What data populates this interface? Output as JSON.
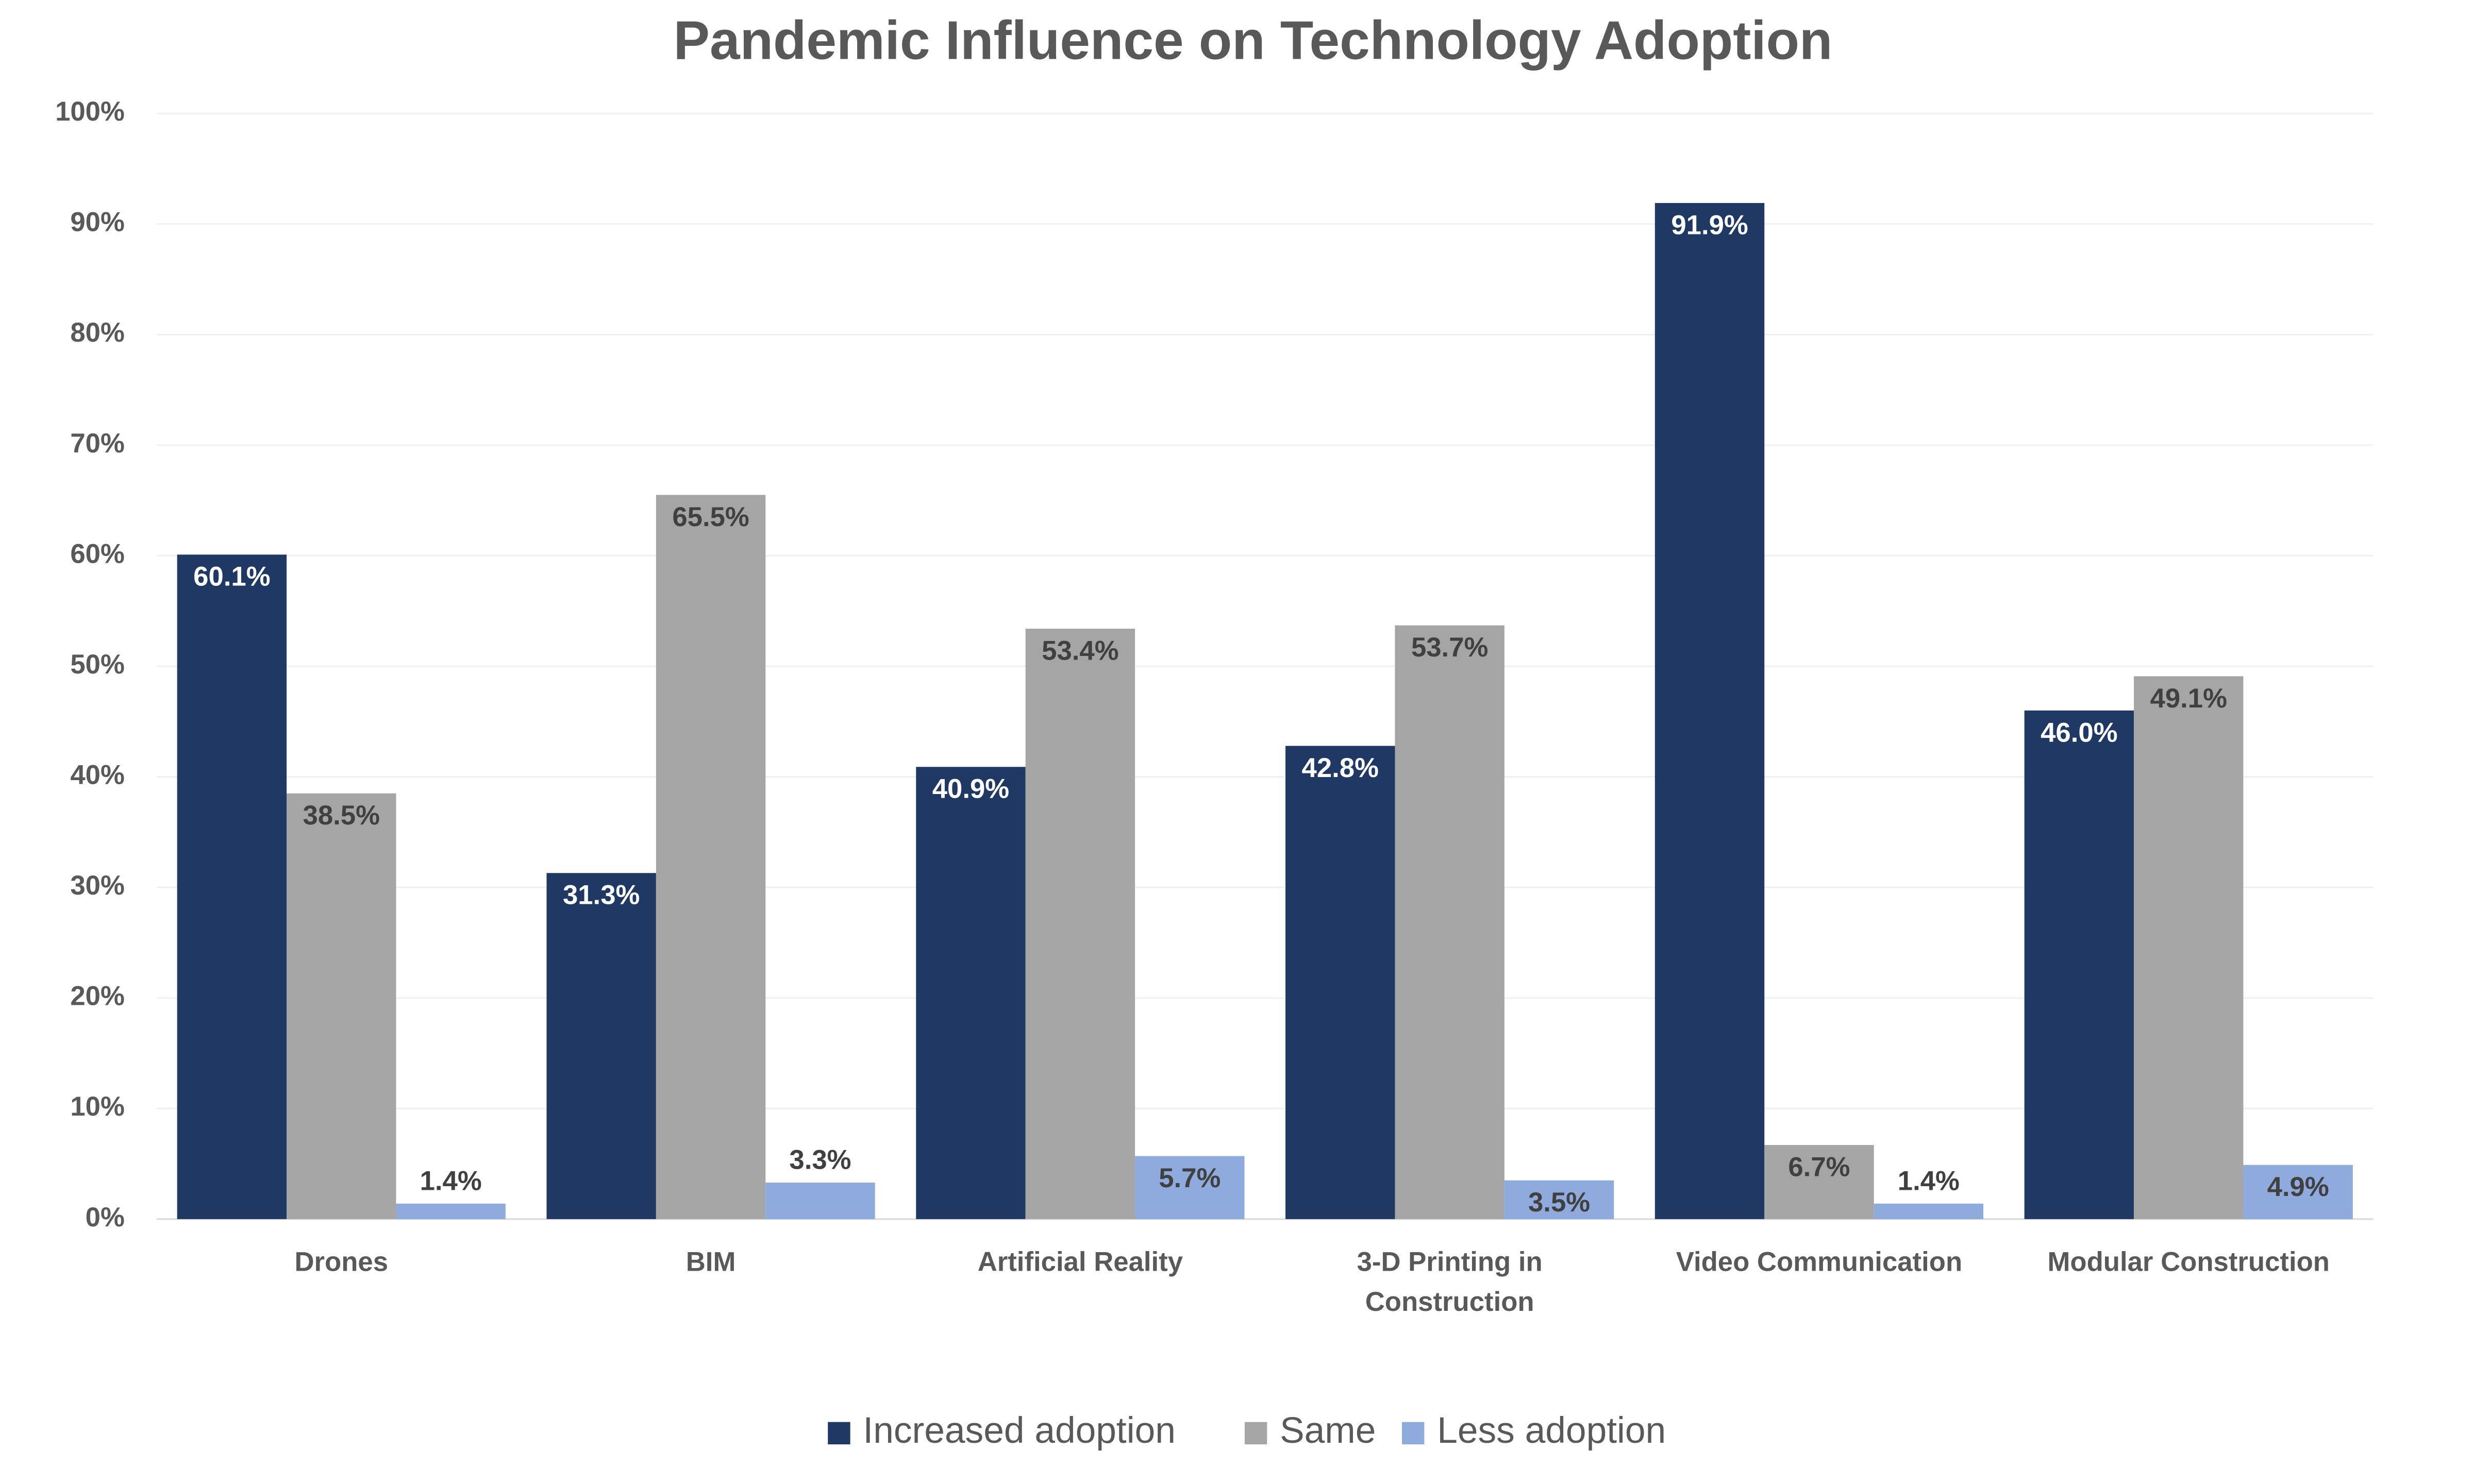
{
  "chart_data": {
    "type": "bar",
    "title": "Pandemic Influence on Technology Adoption",
    "categories": [
      "Drones",
      "BIM",
      "Artificial Reality",
      "3-D Printing in Construction",
      "Video Communication",
      "Modular Construction"
    ],
    "series": [
      {
        "name": "Increased adoption",
        "color": "#1f3864",
        "values": [
          60.1,
          31.3,
          40.9,
          42.8,
          91.9,
          46.0
        ],
        "value_labels": [
          "60.1%",
          "31.3%",
          "40.9%",
          "42.8%",
          "91.9%",
          "46.0%"
        ]
      },
      {
        "name": "Same",
        "color": "#a5a5a5",
        "values": [
          38.5,
          65.5,
          53.4,
          53.7,
          6.7,
          49.1
        ],
        "value_labels": [
          "38.5%",
          "65.5%",
          "53.4%",
          "53.7%",
          "6.7%",
          "49.1%"
        ]
      },
      {
        "name": "Less adoption",
        "color": "#8faadc",
        "values": [
          1.4,
          3.3,
          5.7,
          3.5,
          1.4,
          4.9
        ],
        "value_labels": [
          "1.4%",
          "3.3%",
          "5.7%",
          "3.5%",
          "1.4%",
          "4.9%"
        ]
      }
    ],
    "ylim": [
      0,
      100
    ],
    "yticks": [
      {
        "value": 0,
        "label": "0%"
      },
      {
        "value": 10,
        "label": "10%"
      },
      {
        "value": 20,
        "label": "20%"
      },
      {
        "value": 30,
        "label": "30%"
      },
      {
        "value": 40,
        "label": "40%"
      },
      {
        "value": 50,
        "label": "50%"
      },
      {
        "value": 60,
        "label": "60%"
      },
      {
        "value": 70,
        "label": "70%"
      },
      {
        "value": 80,
        "label": "80%"
      },
      {
        "value": 90,
        "label": "90%"
      },
      {
        "value": 100,
        "label": "100%"
      }
    ],
    "grid": true,
    "legend": "bottom"
  }
}
